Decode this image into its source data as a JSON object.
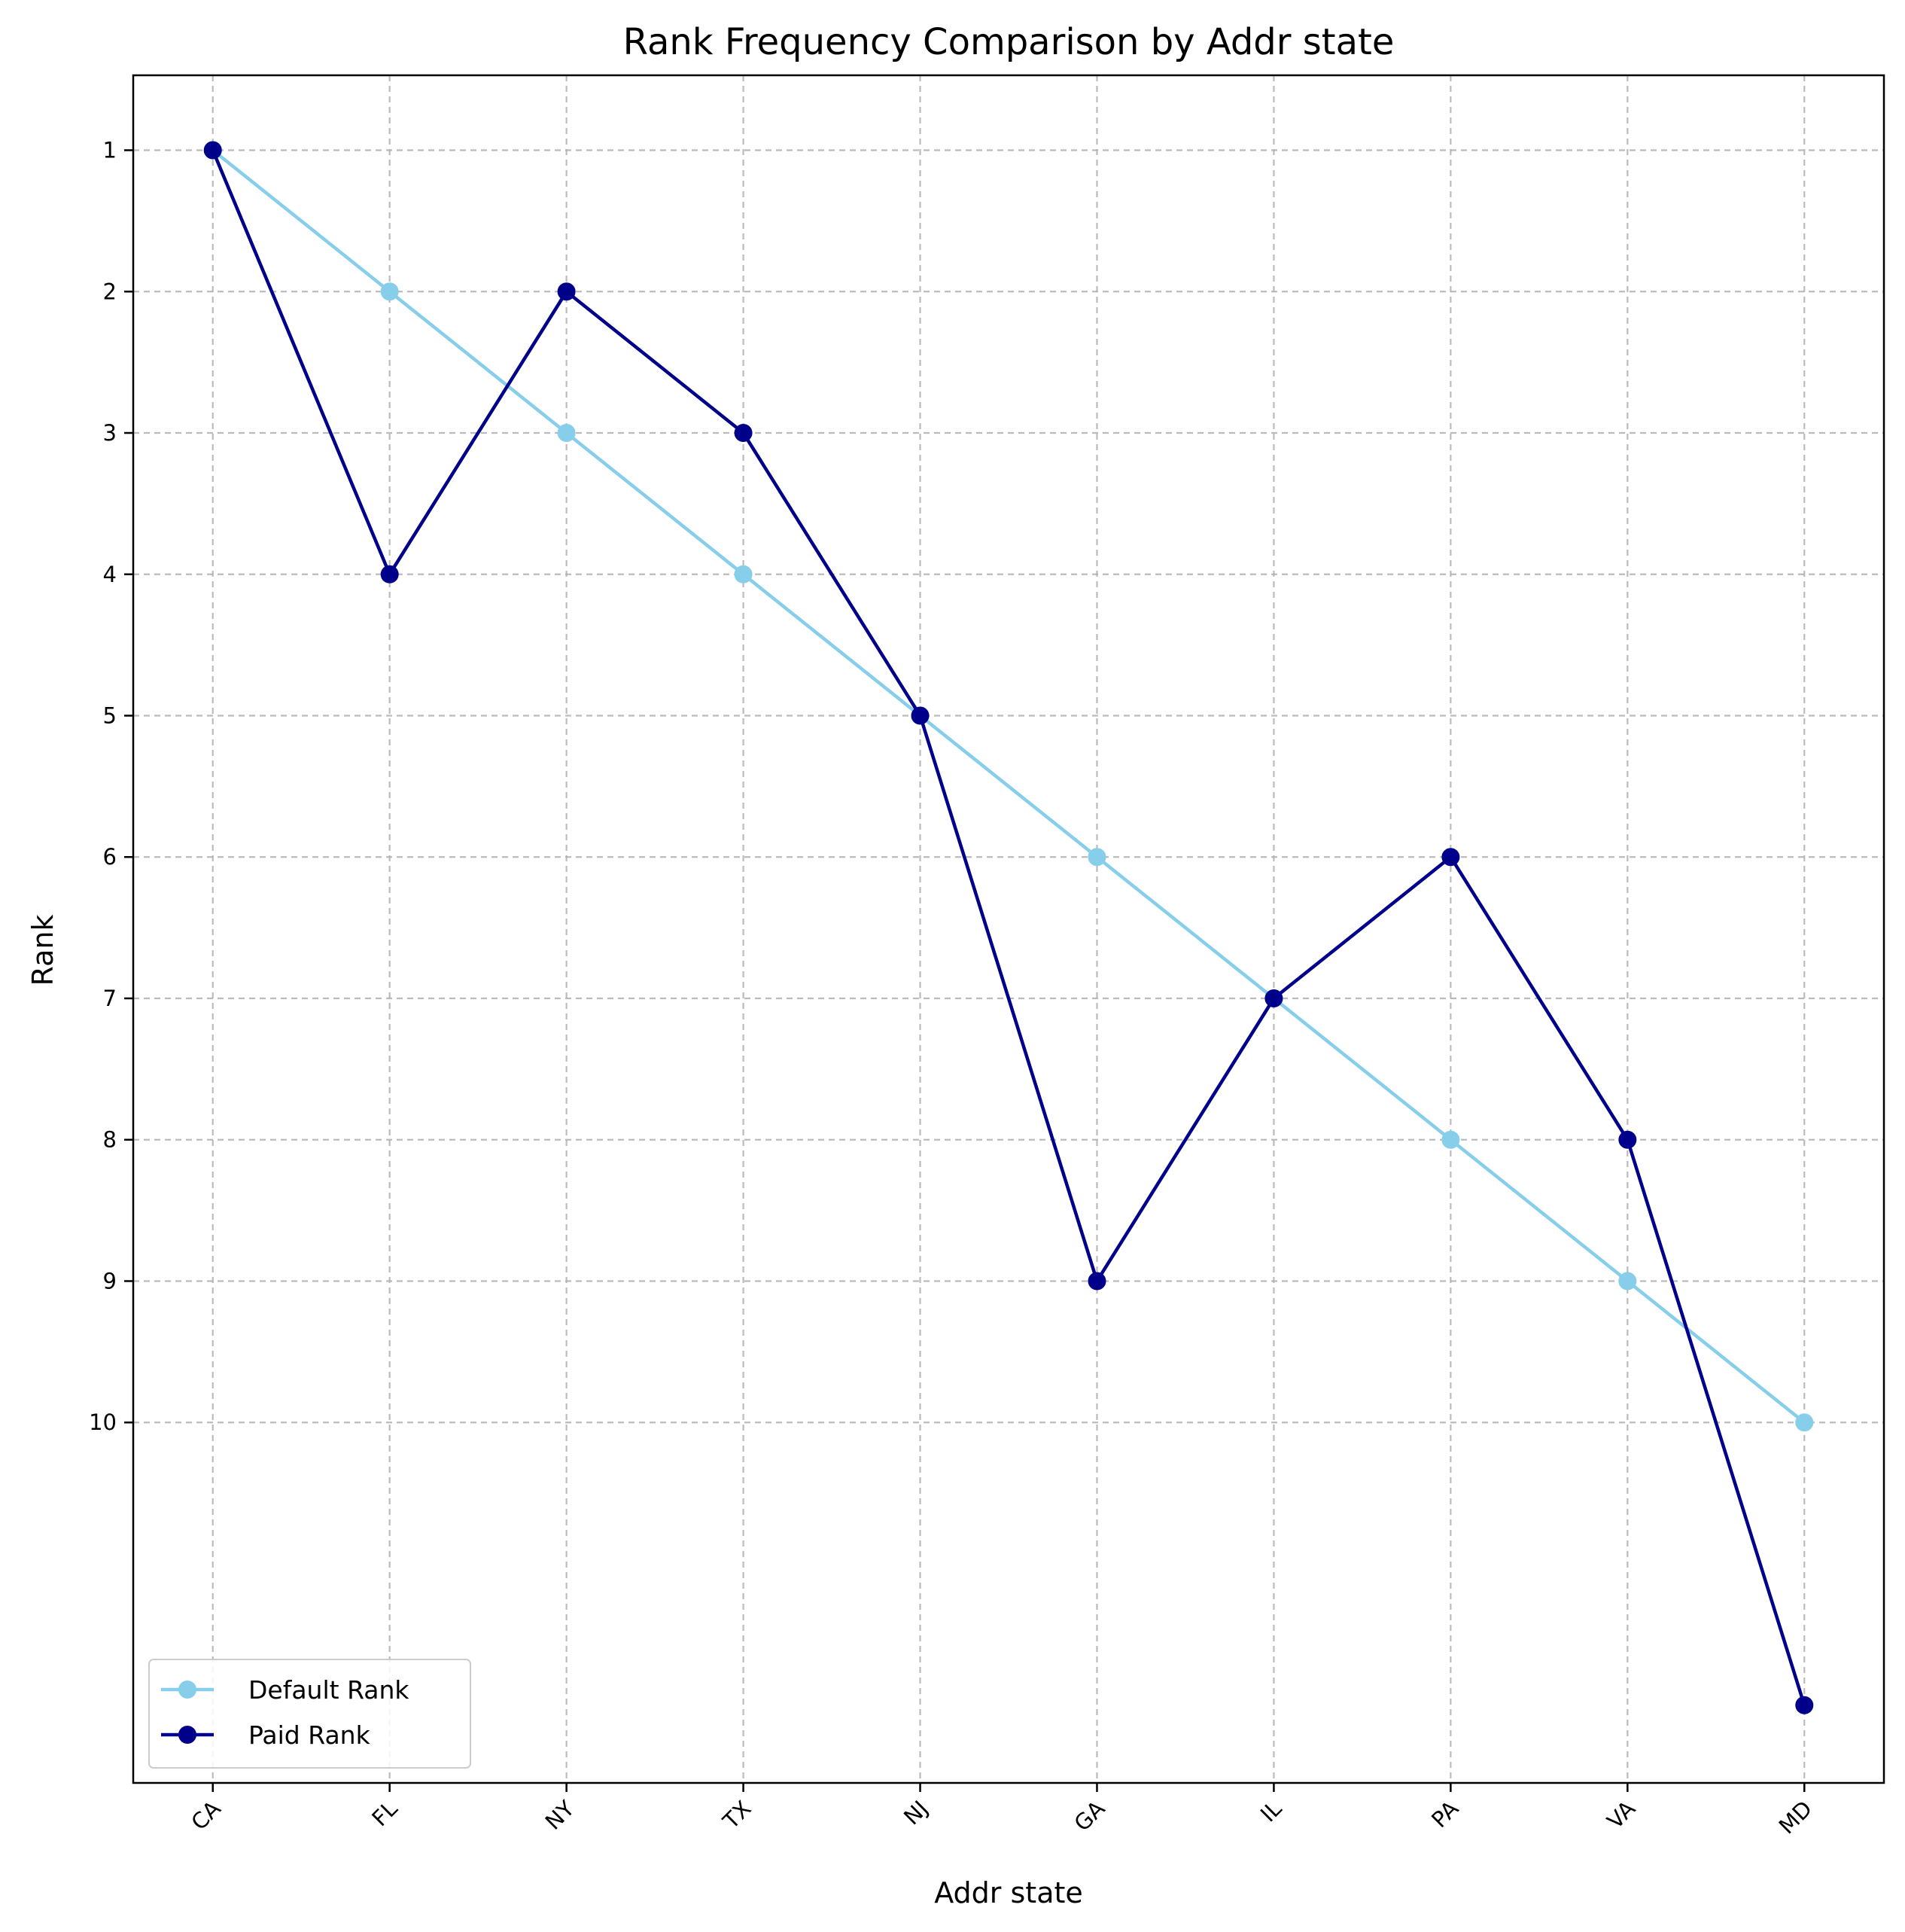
{
  "chart_data": {
    "type": "line",
    "title": "Rank Frequency Comparison by Addr state",
    "xlabel": "Addr state",
    "ylabel": "Rank",
    "categories": [
      "CA",
      "FL",
      "NY",
      "TX",
      "NJ",
      "GA",
      "IL",
      "PA",
      "VA",
      "MD"
    ],
    "yticks": [
      1,
      2,
      3,
      4,
      5,
      6,
      7,
      8,
      9,
      10
    ],
    "ylim": [
      12.55,
      0.47
    ],
    "y_inverted": true,
    "grid": true,
    "legend_position": "lower-left",
    "series": [
      {
        "name": "Default Rank",
        "color": "#87CEEB",
        "values": [
          1,
          2,
          3,
          4,
          5,
          6,
          7,
          8,
          9,
          10
        ]
      },
      {
        "name": "Paid Rank",
        "color": "#00008B",
        "values": [
          1,
          4,
          2,
          3,
          5,
          9,
          7,
          6,
          8,
          12
        ]
      }
    ]
  }
}
